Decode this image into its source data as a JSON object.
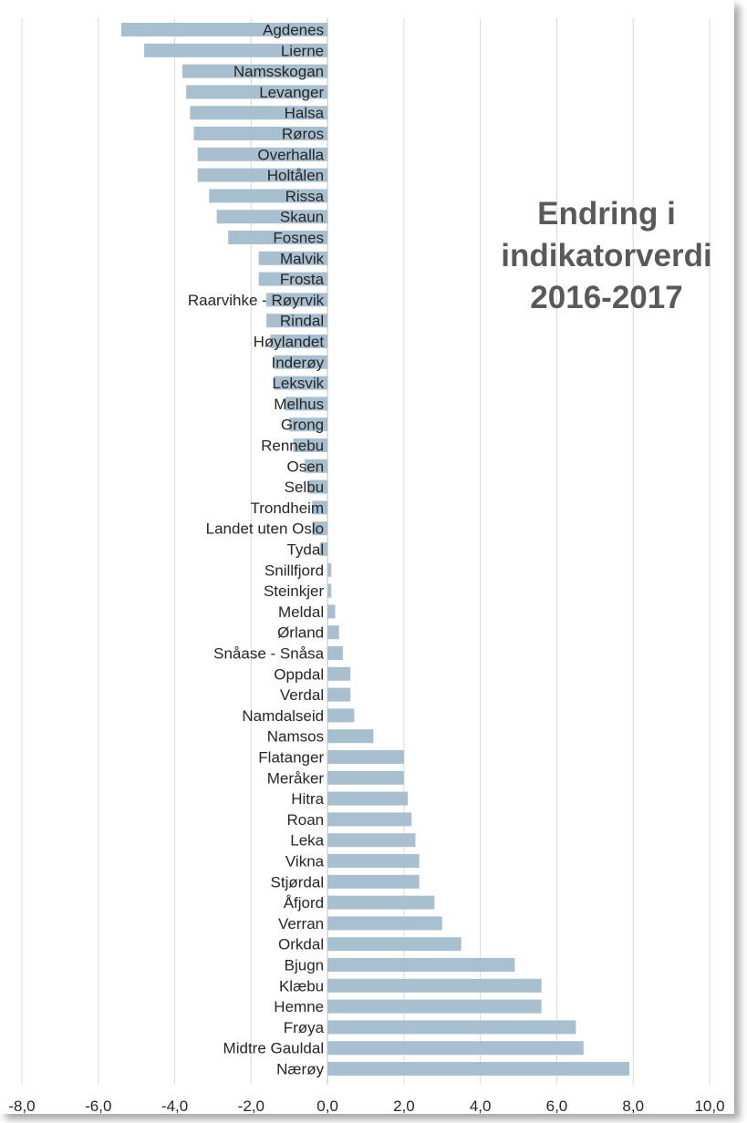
{
  "chart_data": {
    "type": "bar",
    "orientation": "horizontal",
    "title_lines": [
      "Endring i",
      "indikatorverdi",
      "2016-2017"
    ],
    "xlim": [
      -8,
      10
    ],
    "x_ticks": [
      "-8,0",
      "-6,0",
      "-4,0",
      "-2,0",
      "0,0",
      "2,0",
      "4,0",
      "6,0",
      "8,0",
      "10,0"
    ],
    "grid": "vertical",
    "bar_color": "#a7bfcf",
    "categories": [
      "Agdenes",
      "Lierne",
      "Namsskogan",
      "Levanger",
      "Halsa",
      "Røros",
      "Overhalla",
      "Holtålen",
      "Rissa",
      "Skaun",
      "Fosnes",
      "Malvik",
      "Frosta",
      "Raarvihke - Røyrvik",
      "Rindal",
      "Høylandet",
      "Inderøy",
      "Leksvik",
      "Melhus",
      "Grong",
      "Rennebu",
      "Osen",
      "Selbu",
      "Trondheim",
      "Landet uten Oslo",
      "Tydal",
      "Snillfjord",
      "Steinkjer",
      "Meldal",
      "Ørland",
      "Snåase - Snåsa",
      "Oppdal",
      "Verdal",
      "Namdalseid",
      "Namsos",
      "Flatanger",
      "Meråker",
      "Hitra",
      "Roan",
      "Leka",
      "Vikna",
      "Stjørdal",
      "Åfjord",
      "Verran",
      "Orkdal",
      "Bjugn",
      "Klæbu",
      "Hemne",
      "Frøya",
      "Midtre Gauldal",
      "Nærøy"
    ],
    "values": [
      -5.4,
      -4.8,
      -3.8,
      -3.7,
      -3.6,
      -3.5,
      -3.4,
      -3.4,
      -3.1,
      -2.9,
      -2.6,
      -1.8,
      -1.8,
      -1.6,
      -1.6,
      -1.5,
      -1.4,
      -1.4,
      -1.1,
      -1.0,
      -0.9,
      -0.6,
      -0.5,
      -0.4,
      -0.4,
      -0.2,
      0.1,
      0.1,
      0.2,
      0.3,
      0.4,
      0.6,
      0.6,
      0.7,
      1.2,
      2.0,
      2.0,
      2.1,
      2.2,
      2.3,
      2.4,
      2.4,
      2.8,
      3.0,
      3.5,
      4.9,
      5.6,
      5.6,
      6.5,
      6.7,
      7.9
    ]
  }
}
